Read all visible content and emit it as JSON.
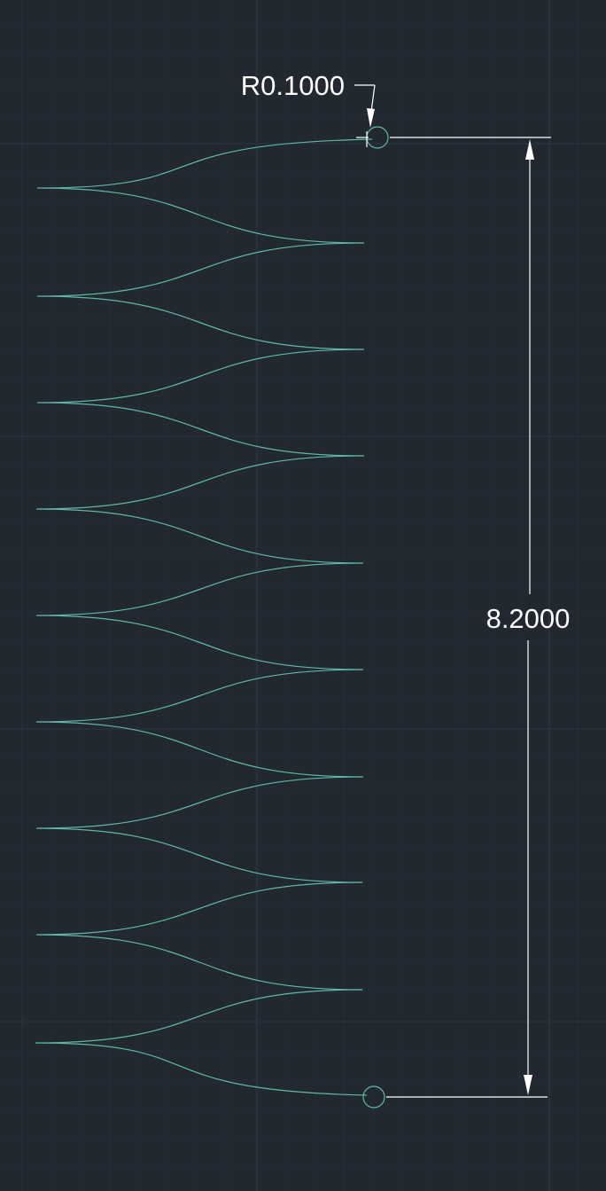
{
  "drawing": {
    "background_color": "#212830",
    "grid_major_color": "#2c3540",
    "grid_minor_color": "#262d36",
    "curve_color": "#5fb8a6",
    "dimension_color": "#ffffff"
  },
  "annotations": {
    "radius_label": "R0.1000",
    "height_label": "8.2000"
  },
  "spring": {
    "peak_count_left": 10,
    "peak_count_right": 9
  }
}
